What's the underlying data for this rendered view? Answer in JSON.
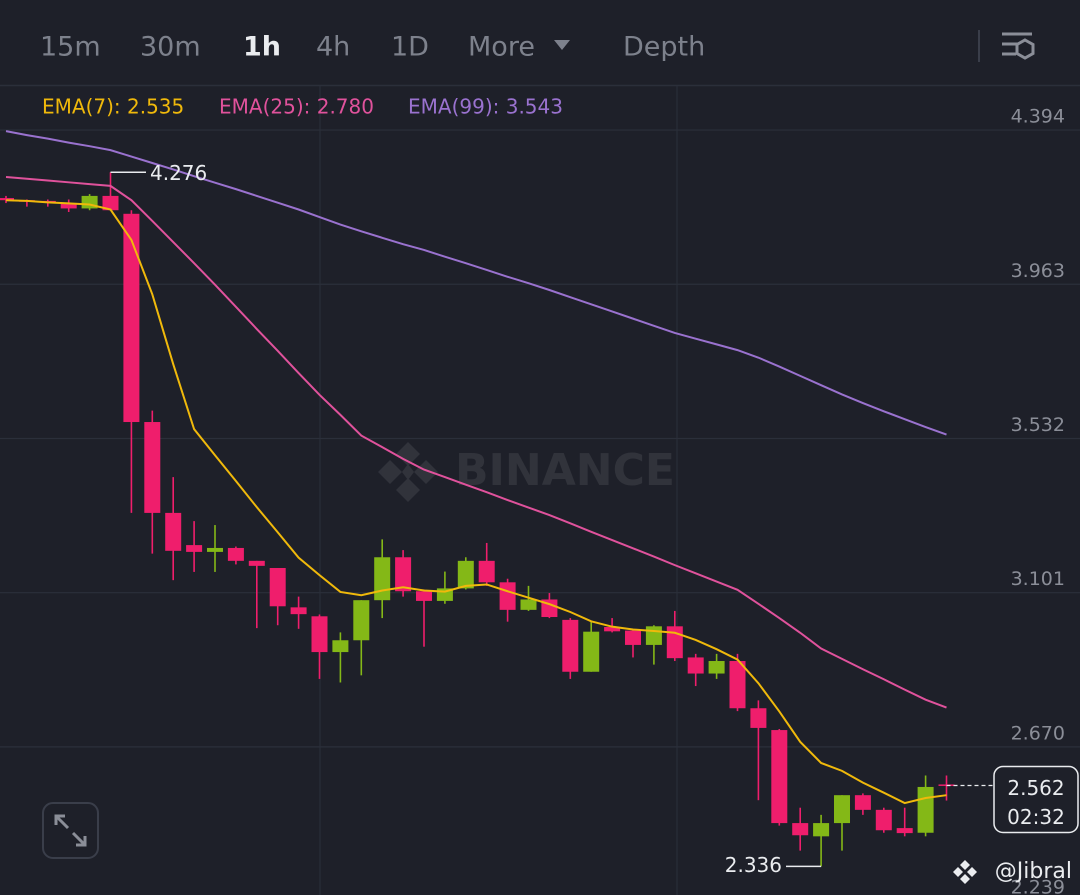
{
  "tabs": [
    "15m",
    "30m",
    "1h",
    "4h",
    "1D",
    "More",
    "Depth"
  ],
  "active_tab": 2,
  "watermark": "BINANCE",
  "credit": "@Jibral",
  "chart_data": {
    "type": "candlestick",
    "ylim": [
      2.256,
      4.52
    ],
    "yticks": [
      4.394,
      3.963,
      3.532,
      3.101,
      {
        "value": 2.67,
        "label": "2.670"
      },
      2.239
    ],
    "grid": true,
    "up_color": "#84b817",
    "down_color": "#ef1e6c",
    "open": [
      4.204,
      4.198,
      4.196,
      4.19,
      4.175,
      4.21,
      4.16,
      3.578,
      3.324,
      3.234,
      3.215,
      3.226,
      3.19,
      3.17,
      3.06,
      3.035,
      2.935,
      2.968,
      3.08,
      3.2,
      3.105,
      3.078,
      3.113,
      3.19,
      3.13,
      3.053,
      3.082,
      3.025,
      2.88,
      3.005,
      2.995,
      2.955,
      3.007,
      2.92,
      2.875,
      2.91,
      2.778,
      2.717,
      2.457,
      2.42,
      2.457,
      2.535,
      2.494,
      2.443,
      2.43,
      2.565
    ],
    "high": [
      4.21,
      4.2,
      4.2,
      4.2,
      4.215,
      4.276,
      4.17,
      3.61,
      3.424,
      3.301,
      3.29,
      3.23,
      3.19,
      3.17,
      3.09,
      3.04,
      2.99,
      3.08,
      3.25,
      3.22,
      3.11,
      3.16,
      3.2,
      3.24,
      3.14,
      3.12,
      3.1,
      3.03,
      3.02,
      3.03,
      3.0,
      3.01,
      3.05,
      2.93,
      2.93,
      2.93,
      2.8,
      2.72,
      2.5,
      2.48,
      2.535,
      2.54,
      2.5,
      2.5,
      2.59,
      2.59
    ],
    "low": [
      4.19,
      4.18,
      4.18,
      4.165,
      4.17,
      4.17,
      3.324,
      3.21,
      3.136,
      3.159,
      3.159,
      3.18,
      3.002,
      3.01,
      3.0,
      2.86,
      2.85,
      2.87,
      3.03,
      3.09,
      2.95,
      3.07,
      3.11,
      3.12,
      3.02,
      3.05,
      3.03,
      2.86,
      2.88,
      2.99,
      2.92,
      2.9,
      2.91,
      2.84,
      2.86,
      2.77,
      2.521,
      2.45,
      2.38,
      2.336,
      2.38,
      2.48,
      2.43,
      2.42,
      2.42,
      2.52
    ],
    "close": [
      4.198,
      4.195,
      4.192,
      4.175,
      4.21,
      4.17,
      3.578,
      3.324,
      3.218,
      3.215,
      3.226,
      3.19,
      3.176,
      3.063,
      3.041,
      2.935,
      2.968,
      3.08,
      3.2,
      3.105,
      3.078,
      3.113,
      3.19,
      3.13,
      3.053,
      3.082,
      3.033,
      2.88,
      2.992,
      2.993,
      2.955,
      3.007,
      2.918,
      2.875,
      2.91,
      2.778,
      2.723,
      2.457,
      2.423,
      2.457,
      2.535,
      2.494,
      2.437,
      2.429,
      2.558,
      2.562
    ],
    "series": [
      {
        "name": "EMA(7): 2.535",
        "color": "#f0b90b",
        "values": [
          4.198,
          4.196,
          4.192,
          4.189,
          4.186,
          4.172,
          4.087,
          3.935,
          3.74,
          3.558,
          3.485,
          3.413,
          3.34,
          3.27,
          3.199,
          3.15,
          3.103,
          3.094,
          3.107,
          3.116,
          3.107,
          3.104,
          3.12,
          3.124,
          3.105,
          3.087,
          3.069,
          3.047,
          3.021,
          3.006,
          2.998,
          2.994,
          2.989,
          2.969,
          2.943,
          2.914,
          2.848,
          2.769,
          2.684,
          2.625,
          2.603,
          2.57,
          2.542,
          2.513,
          2.527,
          2.535
        ]
      },
      {
        "name": "EMA(25): 2.780",
        "color": "#e0529c",
        "values": [
          4.263,
          4.258,
          4.253,
          4.248,
          4.243,
          4.238,
          4.198,
          4.14,
          4.081,
          4.022,
          3.962,
          3.9,
          3.838,
          3.777,
          3.715,
          3.654,
          3.598,
          3.54,
          3.508,
          3.475,
          3.445,
          3.424,
          3.403,
          3.382,
          3.36,
          3.339,
          3.318,
          3.295,
          3.271,
          3.248,
          3.225,
          3.202,
          3.178,
          3.155,
          3.132,
          3.109,
          3.07,
          3.03,
          2.989,
          2.945,
          2.916,
          2.887,
          2.859,
          2.83,
          2.802,
          2.78
        ]
      },
      {
        "name": "EMA(99): 3.543",
        "color": "#9a72cf",
        "values": [
          4.391,
          4.38,
          4.37,
          4.359,
          4.349,
          4.338,
          4.32,
          4.302,
          4.284,
          4.265,
          4.247,
          4.229,
          4.21,
          4.191,
          4.172,
          4.151,
          4.13,
          4.111,
          4.093,
          4.075,
          4.059,
          4.04,
          4.022,
          4.003,
          3.984,
          3.966,
          3.947,
          3.927,
          3.907,
          3.887,
          3.867,
          3.847,
          3.827,
          3.811,
          3.795,
          3.779,
          3.758,
          3.733,
          3.707,
          3.681,
          3.655,
          3.631,
          3.608,
          3.586,
          3.564,
          3.543
        ]
      }
    ],
    "high_marker": 4.276,
    "low_marker": 2.336,
    "current_price": 2.562,
    "countdown": "02:32"
  }
}
